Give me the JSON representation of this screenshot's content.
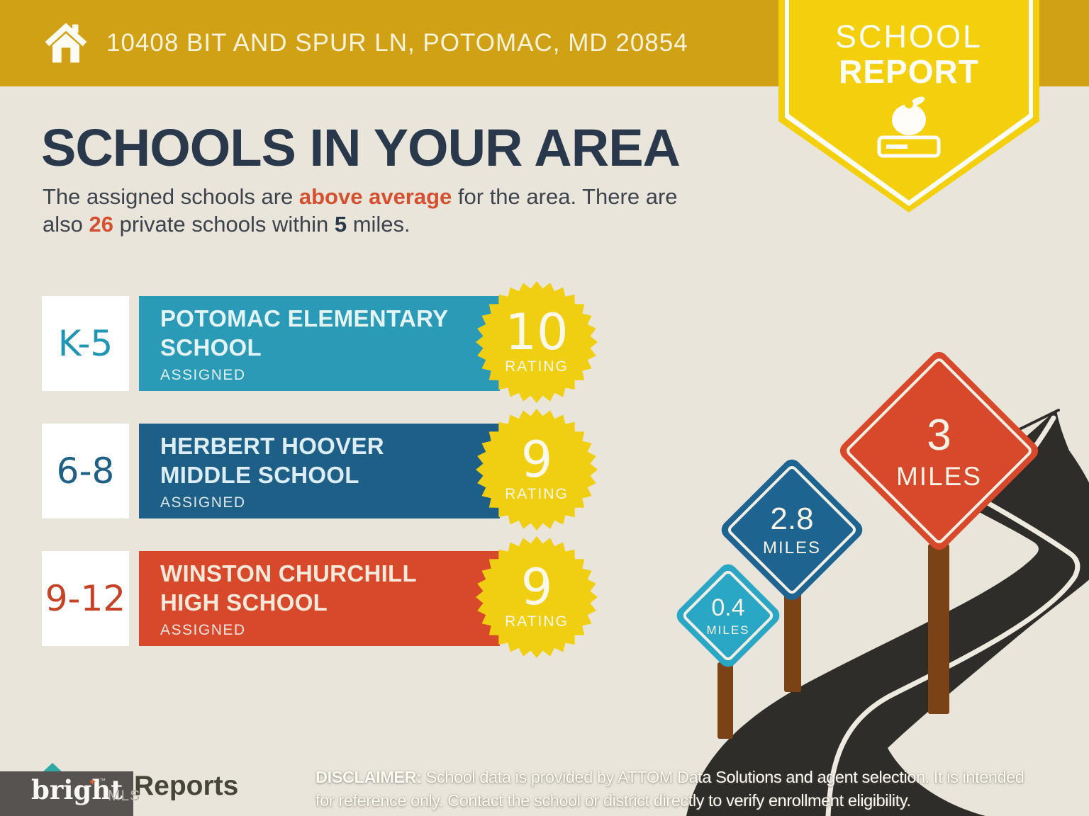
{
  "palette": {
    "gold_bar": "#D0A115",
    "ribbon_yellow": "#F3CF0C",
    "background": "#EAE5DB",
    "heading_navy": "#29384A",
    "body_text": "#3C434C",
    "accent_orange": "#D6502F",
    "badge_yellow": "#F0CE12",
    "badge_text": "#FCF8EA",
    "road_dark": "#2F2D2A",
    "road_line": "#EFEAE0",
    "post_brown": "#7B4315",
    "footer_box_gray": "#575350"
  },
  "header": {
    "address": "10408 BIT AND SPUR LN, POTOMAC, MD 20854"
  },
  "ribbon": {
    "line1": "SCHOOL",
    "line2": "REPORT"
  },
  "intro": {
    "title": "SCHOOLS IN YOUR AREA",
    "line1_pre": "The assigned schools are ",
    "line1_highlight": "above average",
    "line1_post": " for the area. There are",
    "line2_pre": "also ",
    "line2_count": "26",
    "line2_mid": " private schools within ",
    "line2_miles": "5",
    "line2_post": " miles."
  },
  "schools": [
    {
      "grades": "K-5",
      "name_line1": "POTOMAC ELEMENTARY",
      "name_line2": "SCHOOL",
      "status": "ASSIGNED",
      "rating": "10",
      "rating_label": "RATING",
      "bar_color": "#2B9AB6",
      "grade_color": "#2095B4",
      "name_color": "#E3F4F7"
    },
    {
      "grades": "6-8",
      "name_line1": "HERBERT HOOVER",
      "name_line2": "MIDDLE SCHOOL",
      "status": "ASSIGNED",
      "rating": "9",
      "rating_label": "RATING",
      "bar_color": "#1D5F86",
      "grade_color": "#1D5F86",
      "name_color": "#DCEDF5"
    },
    {
      "grades": "9-12",
      "name_line1": "WINSTON CHURCHILL",
      "name_line2": "HIGH SCHOOL",
      "status": "ASSIGNED",
      "rating": "9",
      "rating_label": "RATING",
      "bar_color": "#D8492B",
      "grade_color": "#C64327",
      "name_color": "#F8E8D9"
    }
  ],
  "signs": [
    {
      "distance": "0.4",
      "unit": "MILES",
      "color": "#2BA7C6"
    },
    {
      "distance": "2.8",
      "unit": "MILES",
      "color": "#1D6490"
    },
    {
      "distance": "3",
      "unit": "MILES",
      "color": "#D8492B"
    }
  ],
  "footer": {
    "reports_partial": "Reports",
    "brand_name": "bright",
    "brand_tm": "™",
    "brand_suffix": "MLS",
    "disclaimer_label": "DISCLAIMER:",
    "disclaimer_line1": " School data is provided by ATTOM Data Solutions and agent selection. It is intended",
    "disclaimer_line2": "for reference only. Contact the school or district directly to verify enrollment eligibility."
  }
}
